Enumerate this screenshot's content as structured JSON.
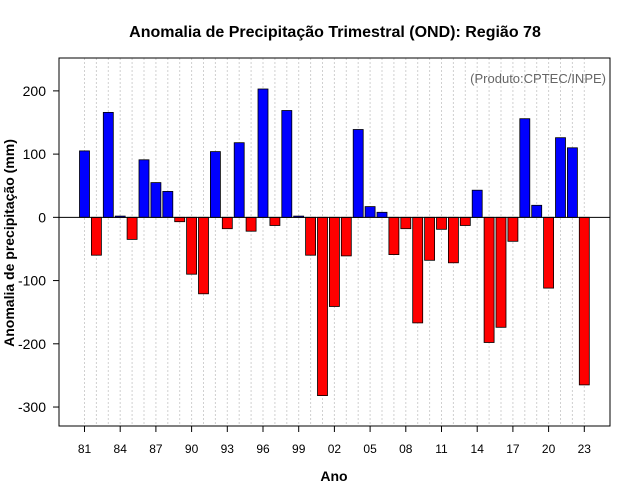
{
  "chart_data": {
    "type": "bar",
    "title": "Anomalia de Precipitação Trimestral (OND): Região 78",
    "credit": "(Produto:CPTEC/INPE)",
    "xlabel": "Ano",
    "ylabel": "Anomalia de precipitação (mm)",
    "ylim": [
      -330,
      252
    ],
    "yticks": [
      -300,
      -200,
      -100,
      0,
      100,
      200
    ],
    "ytick_labels": [
      "-300",
      "-200",
      "-100",
      "0",
      "100",
      "200"
    ],
    "xticks": [
      "81",
      "84",
      "87",
      "90",
      "93",
      "96",
      "99",
      "02",
      "05",
      "08",
      "11",
      "14",
      "17",
      "20",
      "23"
    ],
    "grid": "vertical dotted",
    "positive_color": "#0000ff",
    "negative_color": "#ff0000",
    "categories": [
      "1981",
      "1982",
      "1983",
      "1984",
      "1985",
      "1986",
      "1987",
      "1988",
      "1989",
      "1990",
      "1991",
      "1992",
      "1993",
      "1994",
      "1995",
      "1996",
      "1997",
      "1998",
      "1999",
      "2000",
      "2001",
      "2002",
      "2003",
      "2004",
      "2005",
      "2006",
      "2007",
      "2008",
      "2009",
      "2010",
      "2011",
      "2012",
      "2013",
      "2014",
      "2015",
      "2016",
      "2017",
      "2018",
      "2019",
      "2020",
      "2021",
      "2022",
      "2023"
    ],
    "values": [
      105,
      -60,
      166,
      2,
      -35,
      91,
      55,
      41,
      -7,
      -90,
      -121,
      104,
      -18,
      118,
      -22,
      203,
      -13,
      169,
      2,
      -60,
      -282,
      -141,
      -61,
      139,
      17,
      8,
      -59,
      -18,
      -167,
      -68,
      -19,
      -72,
      -13,
      43,
      -198,
      -174,
      -38,
      156,
      19,
      -112,
      126,
      110,
      -265
    ]
  }
}
